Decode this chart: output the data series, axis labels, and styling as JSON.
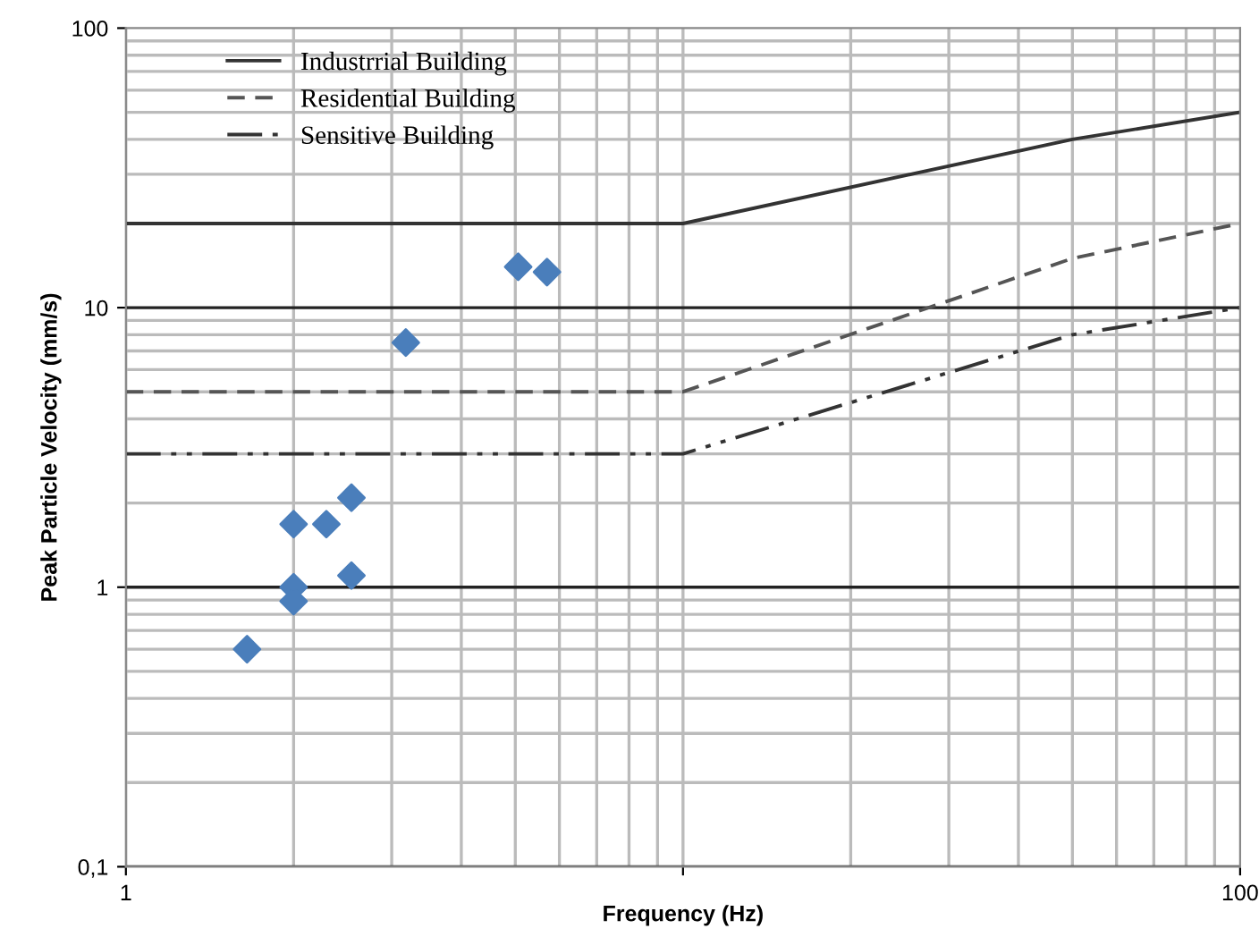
{
  "chart_data": {
    "type": "line",
    "xlabel": "Frequency (Hz)",
    "ylabel": "Peak Particle Velocity (mm/s)",
    "log": "xy",
    "xlim": [
      1,
      100
    ],
    "ylim": [
      0.1,
      100
    ],
    "xticks": [
      1,
      {
        "value": 10,
        "label": null
      },
      100
    ],
    "yticks": [
      {
        "value": 0.1,
        "label": "0,1"
      },
      1,
      10,
      100
    ],
    "grid": true,
    "legend": "top left",
    "series": [
      {
        "name": "Industrrial Building",
        "color": "#333333",
        "line_style": "solid",
        "marker": "none",
        "x": [
          1,
          10,
          50,
          100
        ],
        "values": [
          20,
          20,
          40,
          50
        ]
      },
      {
        "name": "Residential Building",
        "color": "#555555",
        "line_style": "dashed",
        "marker": "none",
        "x": [
          1,
          10,
          50,
          100
        ],
        "values": [
          5,
          5,
          15,
          20
        ]
      },
      {
        "name": "Sensitive Building",
        "color": "#333333",
        "line_style": "dashdot",
        "marker": "none",
        "x": [
          1,
          10,
          50,
          100
        ],
        "values": [
          3,
          3,
          8,
          10
        ]
      },
      {
        "type": "scatter",
        "color": "#4a7ebb",
        "marker": "diamond",
        "x": [
          1.65,
          2,
          2,
          2,
          2.29,
          2.54,
          2.54,
          3.18,
          5.06,
          5.7
        ],
        "values": [
          0.6,
          1.68,
          1.0,
          0.89,
          1.68,
          2.09,
          1.1,
          7.5,
          14,
          13.4
        ]
      }
    ]
  }
}
